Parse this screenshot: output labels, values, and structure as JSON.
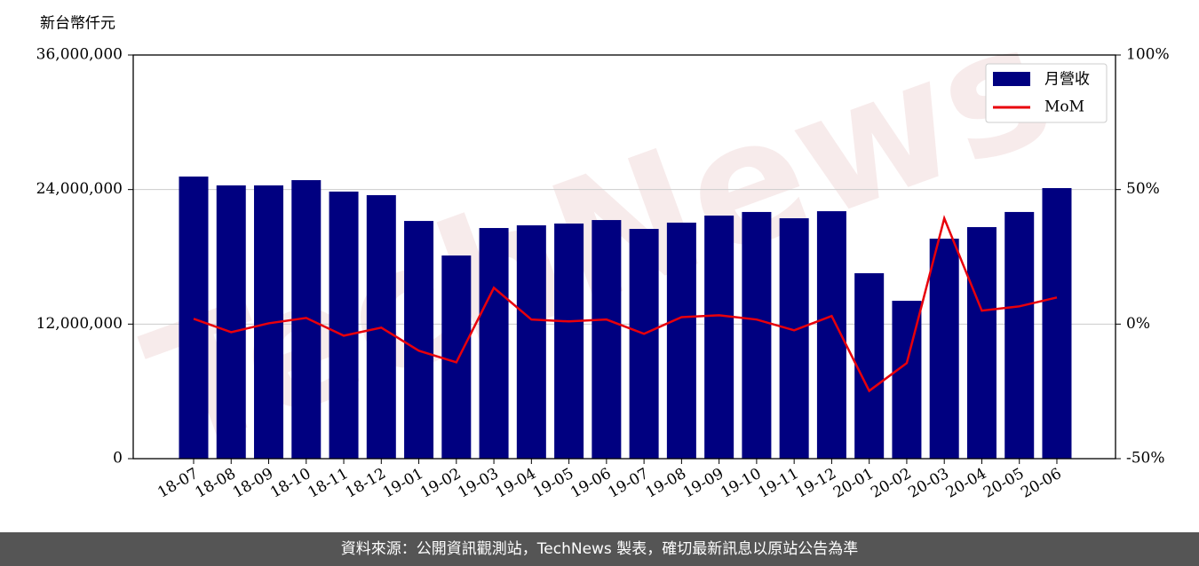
{
  "chart_data": {
    "type": "bar_line",
    "y_label": "新台幣仟元",
    "categories": [
      "18-07",
      "18-08",
      "18-09",
      "18-10",
      "18-11",
      "18-12",
      "19-01",
      "19-02",
      "19-03",
      "19-04",
      "19-05",
      "19-06",
      "19-07",
      "19-08",
      "19-09",
      "19-10",
      "19-11",
      "19-12",
      "20-01",
      "20-02",
      "20-03",
      "20-04",
      "20-05",
      "20-06"
    ],
    "series": [
      {
        "name": "月營收",
        "color": "#000080",
        "values": [
          25160000,
          24370000,
          24370000,
          24840000,
          23820000,
          23500000,
          21200000,
          18120000,
          20570000,
          20810000,
          20970000,
          21280000,
          20490000,
          21050000,
          21680000,
          22000000,
          21440000,
          22070000,
          16540000,
          14080000,
          19620000,
          20650000,
          22000000,
          24130000
        ]
      },
      {
        "name": "MoM",
        "color": "#e8000b",
        "axis": "y2",
        "values": [
          2.0,
          -3.0,
          0.3,
          2.3,
          -4.3,
          -1.3,
          -9.9,
          -14.2,
          13.5,
          1.7,
          1.0,
          1.7,
          -3.6,
          2.6,
          3.3,
          1.7,
          -2.3,
          3.0,
          -24.8,
          -14.5,
          39.3,
          5.0,
          6.6,
          9.9
        ]
      }
    ],
    "ylim": [
      0,
      36000000
    ],
    "yticks": [
      0,
      {
        "value": 12000000,
        "label": "12,000,000"
      },
      {
        "value": 24000000,
        "label": "24,000,000"
      },
      {
        "value": 36000000,
        "label": "36,000,000"
      }
    ],
    "y2lim": [
      -50,
      100
    ],
    "y2ticks": [
      {
        "value": -50,
        "label": "-50%"
      },
      {
        "value": 0,
        "label": "0%"
      },
      {
        "value": 50,
        "label": "50%"
      },
      {
        "value": 100,
        "label": "100%"
      }
    ],
    "grid": true,
    "legend": "upper right",
    "watermark": "TechNews",
    "footer": "資料來源：公開資訊觀測站，TechNews 製表，確切最新訊息以原站公告為準"
  }
}
